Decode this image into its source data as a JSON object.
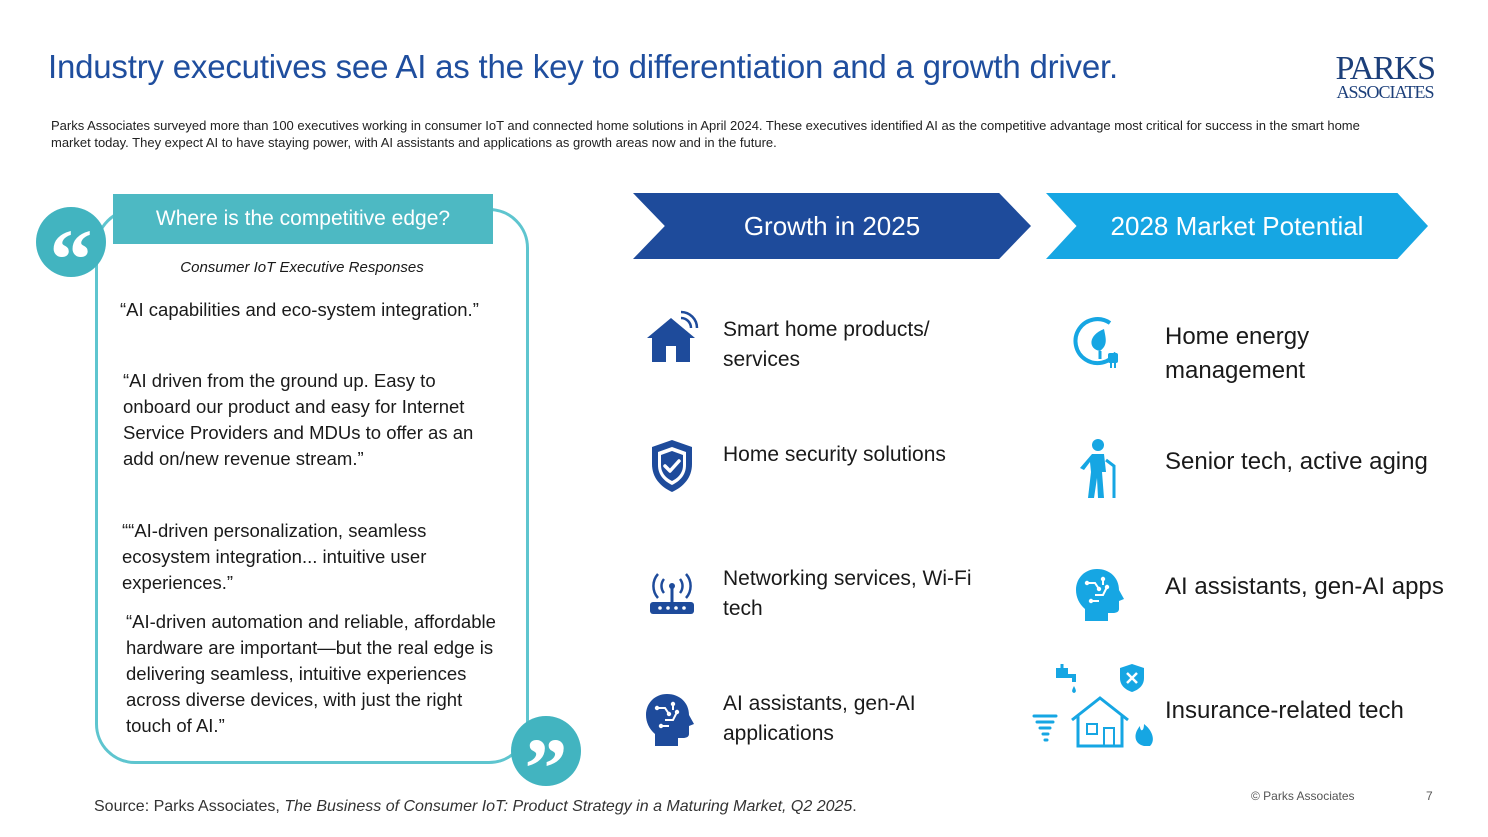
{
  "title": "Industry executives see AI as the key to differentiation and a growth driver.",
  "logo": {
    "line1": "PARKS",
    "line2": "ASSOCIATES"
  },
  "intro": "Parks Associates surveyed more than 100 executives working in consumer IoT and connected home solutions in April 2024. These executives identified AI as the competitive advantage most critical for success in the smart home market today. They expect AI to have staying power, with AI assistants and applications as growth areas now and in the future.",
  "left_panel": {
    "banner": "Where is the competitive edge?",
    "subtitle": "Consumer IoT Executive Responses",
    "quote_open": "“",
    "quote_close": "”",
    "quotes": [
      "“AI capabilities and eco-system integration.”",
      "“AI driven from the ground up. Easy to onboard our product and easy for Internet Service Providers and MDUs to offer as an add on/new revenue stream.”",
      "““AI-driven personalization, seamless ecosystem integration... intuitive user experiences.”",
      "“AI-driven automation and reliable, affordable hardware are important—but the real edge is delivering seamless, intuitive experiences across diverse devices, with just the right touch of AI.”"
    ]
  },
  "growth_2025": {
    "header": "Growth in 2025",
    "color": "#1e4b9b",
    "items": [
      {
        "label": "Smart home products/ services",
        "icon": "smart-home-icon"
      },
      {
        "label": "Home security solutions",
        "icon": "shield-check-icon"
      },
      {
        "label": "Networking services, Wi-Fi tech",
        "icon": "wifi-router-icon"
      },
      {
        "label": "AI assistants, gen-AI applications",
        "icon": "ai-head-icon"
      }
    ]
  },
  "market_2028": {
    "header": "2028 Market Potential",
    "color": "#16a6e3",
    "items": [
      {
        "label": "Home energy management",
        "icon": "energy-plug-icon"
      },
      {
        "label": "Senior tech, active aging",
        "icon": "senior-walking-icon"
      },
      {
        "label": "AI assistants, gen-AI apps",
        "icon": "ai-head-icon"
      },
      {
        "label": "Insurance-related tech",
        "icon": "insurance-house-icon"
      }
    ]
  },
  "footer": {
    "source_prefix": "Source: Parks Associates, ",
    "source_title": "The Business of Consumer IoT: Product Strategy in a Maturing Market, Q2 2025",
    "source_suffix": ".",
    "copyright": "© Parks Associates",
    "page": "7"
  }
}
